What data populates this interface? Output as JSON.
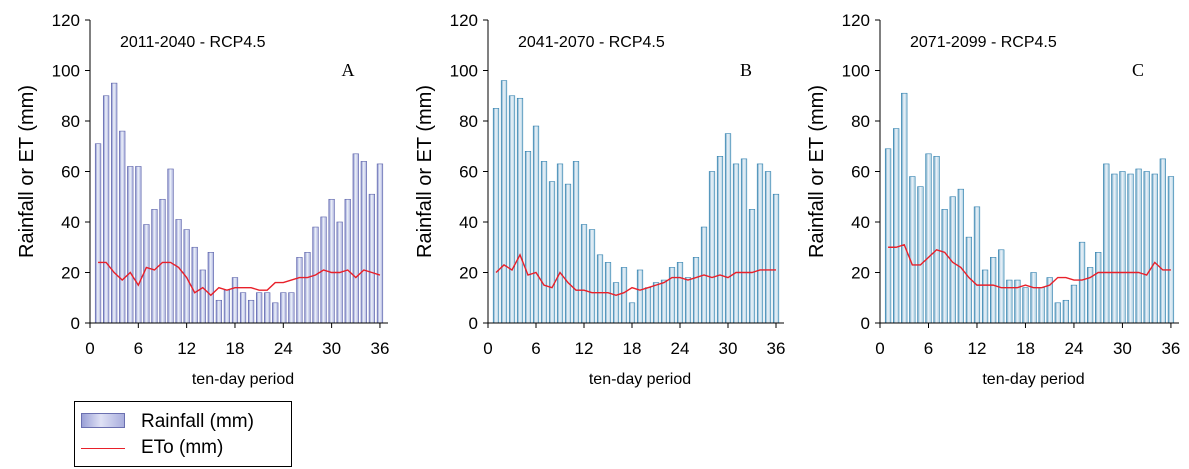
{
  "chart_data": [
    {
      "type": "bar",
      "title": "2011-2040 - RCP4.5",
      "panel_label": "A",
      "xlabel": "ten-day period",
      "ylabel": "Rainfall or ET (mm)",
      "xlim": [
        0,
        37
      ],
      "ylim": [
        0,
        120
      ],
      "xticks": [
        0,
        6,
        12,
        18,
        24,
        30,
        36
      ],
      "yticks": [
        0,
        20,
        40,
        60,
        80,
        100,
        120
      ],
      "x": [
        1,
        2,
        3,
        4,
        5,
        6,
        7,
        8,
        9,
        10,
        11,
        12,
        13,
        14,
        15,
        16,
        17,
        18,
        19,
        20,
        21,
        22,
        23,
        24,
        25,
        26,
        27,
        28,
        29,
        30,
        31,
        32,
        33,
        34,
        35,
        36
      ],
      "series": [
        {
          "name": "Rainfall (mm)",
          "kind": "bar",
          "color": "#a9aedd",
          "values": [
            71,
            90,
            95,
            76,
            62,
            62,
            39,
            45,
            49,
            61,
            41,
            37,
            30,
            21,
            28,
            9,
            13,
            18,
            12,
            9,
            12,
            12,
            8,
            12,
            12,
            26,
            28,
            38,
            42,
            49,
            40,
            49,
            67,
            64,
            51,
            63
          ]
        },
        {
          "name": "ETo (mm)",
          "kind": "line",
          "color": "#e8202a",
          "values": [
            24,
            24,
            20,
            17,
            20,
            15,
            22,
            21,
            24,
            24,
            22,
            18,
            12,
            14,
            11,
            14,
            13,
            14,
            14,
            14,
            13,
            13,
            16,
            16,
            17,
            18,
            18,
            19,
            21,
            20,
            20,
            21,
            18,
            21,
            20,
            19
          ]
        }
      ]
    },
    {
      "type": "bar",
      "title": "2041-2070 - RCP4.5",
      "panel_label": "B",
      "xlabel": "ten-day period",
      "ylabel": "Rainfall or ET (mm)",
      "xlim": [
        0,
        37
      ],
      "ylim": [
        0,
        120
      ],
      "xticks": [
        0,
        6,
        12,
        18,
        24,
        30,
        36
      ],
      "yticks": [
        0,
        20,
        40,
        60,
        80,
        100,
        120
      ],
      "x": [
        1,
        2,
        3,
        4,
        5,
        6,
        7,
        8,
        9,
        10,
        11,
        12,
        13,
        14,
        15,
        16,
        17,
        18,
        19,
        20,
        21,
        22,
        23,
        24,
        25,
        26,
        27,
        28,
        29,
        30,
        31,
        32,
        33,
        34,
        35,
        36
      ],
      "series": [
        {
          "name": "Rainfall (mm)",
          "kind": "bar",
          "color": "#a9cfe0",
          "values": [
            85,
            96,
            90,
            89,
            68,
            78,
            64,
            56,
            63,
            55,
            64,
            39,
            37,
            27,
            24,
            16,
            22,
            8,
            21,
            14,
            16,
            17,
            22,
            24,
            18,
            26,
            38,
            60,
            66,
            75,
            63,
            65,
            45,
            63,
            60,
            51
          ]
        },
        {
          "name": "ETo (mm)",
          "kind": "line",
          "color": "#e8202a",
          "values": [
            20,
            23,
            21,
            27,
            19,
            20,
            15,
            14,
            20,
            16,
            13,
            13,
            12,
            12,
            12,
            11,
            12,
            14,
            13,
            14,
            15,
            16,
            18,
            18,
            17,
            18,
            19,
            18,
            19,
            18,
            20,
            20,
            20,
            21,
            21,
            21
          ]
        }
      ]
    },
    {
      "type": "bar",
      "title": "2071-2099 - RCP4.5",
      "panel_label": "C",
      "xlabel": "ten-day period",
      "ylabel": "Rainfall or ET (mm)",
      "xlim": [
        0,
        37
      ],
      "ylim": [
        0,
        120
      ],
      "xticks": [
        0,
        6,
        12,
        18,
        24,
        30,
        36
      ],
      "yticks": [
        0,
        20,
        40,
        60,
        80,
        100,
        120
      ],
      "x": [
        1,
        2,
        3,
        4,
        5,
        6,
        7,
        8,
        9,
        10,
        11,
        12,
        13,
        14,
        15,
        16,
        17,
        18,
        19,
        20,
        21,
        22,
        23,
        24,
        25,
        26,
        27,
        28,
        29,
        30,
        31,
        32,
        33,
        34,
        35,
        36
      ],
      "series": [
        {
          "name": "Rainfall (mm)",
          "kind": "bar",
          "color": "#a9cfe0",
          "values": [
            69,
            77,
            91,
            58,
            54,
            67,
            66,
            45,
            50,
            53,
            34,
            46,
            21,
            26,
            29,
            17,
            17,
            14,
            20,
            14,
            18,
            8,
            9,
            15,
            32,
            22,
            28,
            63,
            59,
            60,
            59,
            61,
            60,
            59,
            65,
            58
          ]
        },
        {
          "name": "ETo (mm)",
          "kind": "line",
          "color": "#e8202a",
          "values": [
            30,
            30,
            31,
            23,
            23,
            26,
            29,
            28,
            24,
            22,
            18,
            15,
            15,
            15,
            14,
            14,
            14,
            15,
            14,
            14,
            15,
            18,
            18,
            17,
            17,
            18,
            20,
            20,
            20,
            20,
            20,
            20,
            19,
            24,
            21,
            21
          ]
        }
      ]
    }
  ],
  "legend": {
    "items": [
      {
        "label": "Rainfall (mm)",
        "type": "bar"
      },
      {
        "label": "ETo (mm)",
        "type": "line"
      }
    ]
  }
}
